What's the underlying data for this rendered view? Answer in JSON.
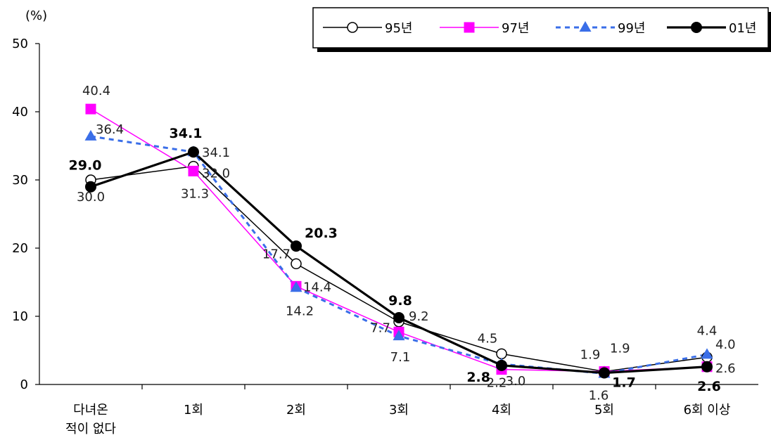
{
  "chart_data": {
    "type": "line",
    "ylabel": "(%)",
    "ylim": [
      0,
      50
    ],
    "yticks": [
      0,
      10,
      20,
      30,
      40,
      50
    ],
    "categories": [
      [
        "다녀온",
        "적이 없다"
      ],
      [
        "1회"
      ],
      [
        "2회"
      ],
      [
        "3회"
      ],
      [
        "4회"
      ],
      [
        "5회"
      ],
      [
        "6회 이상"
      ]
    ],
    "legend_position": "top-right",
    "series": [
      {
        "name": "95년",
        "values": [
          30.0,
          32.0,
          17.7,
          9.2,
          4.5,
          1.9,
          4.0
        ],
        "labels": [
          "30.0",
          "32.0",
          "17.7",
          "9.2",
          "4.5",
          "1.9",
          "4.0"
        ],
        "color": "#000000",
        "marker": "circle-open"
      },
      {
        "name": "97년",
        "values": [
          40.4,
          31.3,
          14.4,
          7.7,
          2.2,
          1.9,
          2.6
        ],
        "labels": [
          "40.4",
          "31.3",
          "14.4",
          "7.7",
          "2.2",
          "1.9",
          "2.6"
        ],
        "color": "#ff00ff",
        "marker": "square"
      },
      {
        "name": "99년",
        "values": [
          36.4,
          34.1,
          14.2,
          7.1,
          3.0,
          1.6,
          4.4
        ],
        "labels": [
          "36.4",
          "34.1",
          "14.2",
          "7.1",
          "3.0",
          "1.6",
          "4.4"
        ],
        "color": "#3a6ee8",
        "marker": "triangle"
      },
      {
        "name": "01년",
        "values": [
          29.0,
          34.1,
          20.3,
          9.8,
          2.8,
          1.7,
          2.6
        ],
        "labels": [
          "29.0",
          "34.1",
          "20.3",
          "9.8",
          "2.8",
          "1.7",
          "2.6"
        ],
        "color": "#000000",
        "marker": "circle-filled"
      }
    ]
  }
}
